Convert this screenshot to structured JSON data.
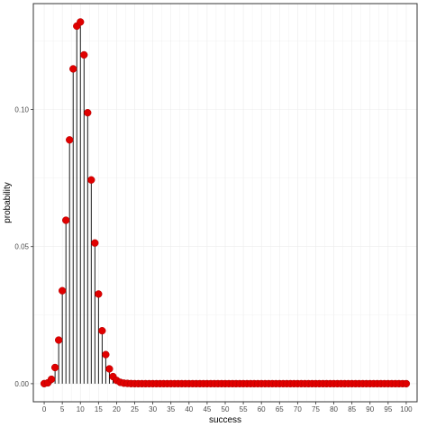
{
  "chart_data": {
    "type": "scatter",
    "style": "lollipop",
    "title": "",
    "xlabel": "success",
    "ylabel": "probability",
    "xlim": [
      -3,
      103
    ],
    "ylim": [
      -0.0066,
      0.1386
    ],
    "x_ticks": [
      0,
      5,
      10,
      15,
      20,
      25,
      30,
      35,
      40,
      45,
      50,
      55,
      60,
      65,
      70,
      75,
      80,
      85,
      90,
      95,
      100
    ],
    "y_ticks": [
      0.0,
      0.05,
      0.1
    ],
    "y_tick_labels": [
      "0.00",
      "0.05",
      "0.10"
    ],
    "grid": true,
    "colors": {
      "point": "#e00000",
      "point_edge": "#b00000",
      "stem": "#000000",
      "grid": "#ebebeb",
      "panel_border": "#333333"
    },
    "x": [
      0,
      1,
      2,
      3,
      4,
      5,
      6,
      7,
      8,
      9,
      10,
      11,
      12,
      13,
      14,
      15,
      16,
      17,
      18,
      19,
      20,
      21,
      22,
      23,
      24,
      25,
      26,
      27,
      28,
      29,
      30,
      31,
      32,
      33,
      34,
      35,
      36,
      37,
      38,
      39,
      40,
      41,
      42,
      43,
      44,
      45,
      46,
      47,
      48,
      49,
      50,
      51,
      52,
      53,
      54,
      55,
      56,
      57,
      58,
      59,
      60,
      61,
      62,
      63,
      64,
      65,
      66,
      67,
      68,
      69,
      70,
      71,
      72,
      73,
      74,
      75,
      76,
      77,
      78,
      79,
      80,
      81,
      82,
      83,
      84,
      85,
      86,
      87,
      88,
      89,
      90,
      91,
      92,
      93,
      94,
      95,
      96,
      97,
      98,
      99,
      100
    ],
    "y": [
      3e-05,
      0.0003,
      0.0016,
      0.0059,
      0.0159,
      0.0339,
      0.0596,
      0.0889,
      0.1148,
      0.1304,
      0.1319,
      0.1199,
      0.0988,
      0.0743,
      0.0513,
      0.0327,
      0.0193,
      0.0106,
      0.0054,
      0.0026,
      0.0012,
      0.0005,
      0.0002,
      0.0001,
      3e-05,
      1e-05,
      0,
      0,
      0,
      0,
      0,
      0,
      0,
      0,
      0,
      0,
      0,
      0,
      0,
      0,
      0,
      0,
      0,
      0,
      0,
      0,
      0,
      0,
      0,
      0,
      0,
      0,
      0,
      0,
      0,
      0,
      0,
      0,
      0,
      0,
      0,
      0,
      0,
      0,
      0,
      0,
      0,
      0,
      0,
      0,
      0,
      0,
      0,
      0,
      0,
      0,
      0,
      0,
      0,
      0,
      0,
      0,
      0,
      0,
      0,
      0,
      0,
      0,
      0,
      0,
      0,
      0,
      0,
      0,
      0,
      0,
      0,
      0,
      0,
      0,
      0
    ]
  }
}
